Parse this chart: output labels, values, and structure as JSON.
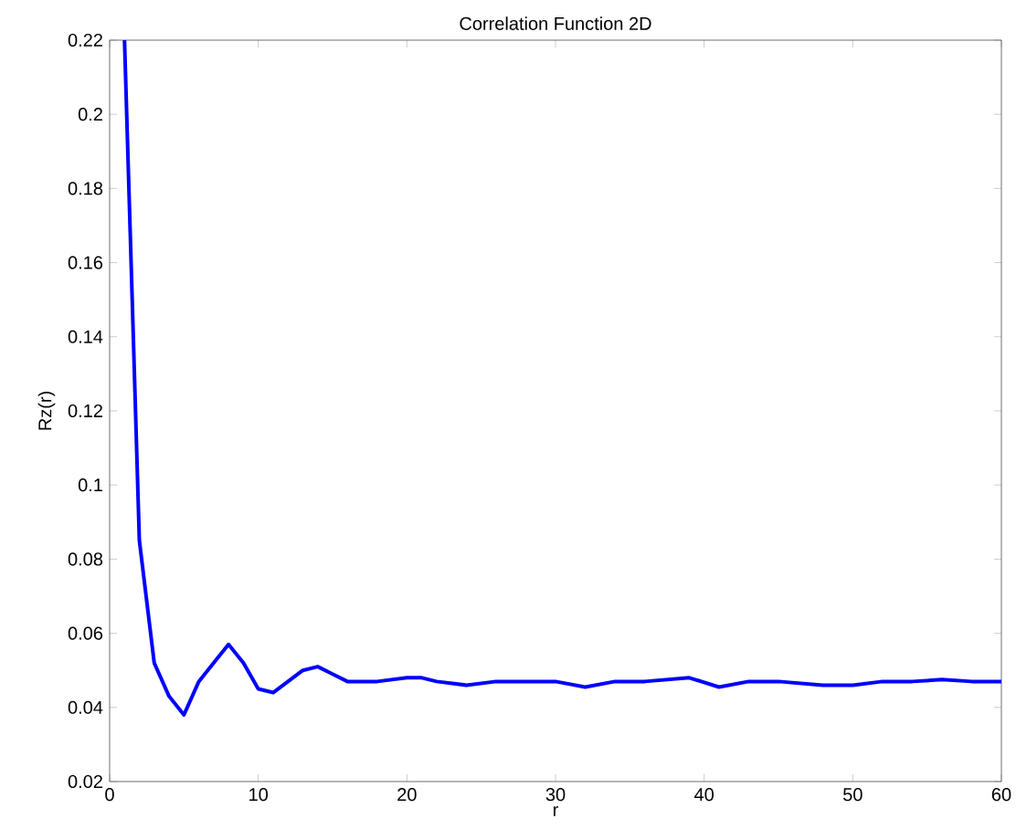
{
  "chart_data": {
    "type": "line",
    "title": "Correlation Function 2D",
    "xlabel": "r",
    "ylabel": "Rz(r)",
    "xlim": [
      0,
      60
    ],
    "ylim": [
      0.02,
      0.22
    ],
    "xticks": [
      0,
      10,
      20,
      30,
      40,
      50,
      60
    ],
    "yticks": [
      0.02,
      0.04,
      0.06,
      0.08,
      0.1,
      0.12,
      0.14,
      0.16,
      0.18,
      0.2,
      0.22
    ],
    "grid": false,
    "marker": "none",
    "line_style": "solid",
    "series": [
      {
        "color": "#0000ff",
        "x": [
          1,
          2,
          3,
          4,
          5,
          6,
          7,
          8,
          9,
          10,
          11,
          12,
          13,
          14,
          15,
          16,
          18,
          20,
          21,
          22,
          24,
          26,
          28,
          30,
          32,
          34,
          36,
          39,
          41,
          43,
          45,
          48,
          50,
          52,
          54,
          56,
          58,
          60
        ],
        "values": [
          0.22,
          0.085,
          0.052,
          0.043,
          0.038,
          0.047,
          0.052,
          0.057,
          0.052,
          0.045,
          0.044,
          0.047,
          0.05,
          0.051,
          0.049,
          0.047,
          0.047,
          0.048,
          0.048,
          0.047,
          0.046,
          0.047,
          0.047,
          0.047,
          0.0455,
          0.047,
          0.047,
          0.048,
          0.0455,
          0.047,
          0.047,
          0.046,
          0.046,
          0.047,
          0.047,
          0.0475,
          0.047,
          0.047
        ]
      }
    ]
  }
}
